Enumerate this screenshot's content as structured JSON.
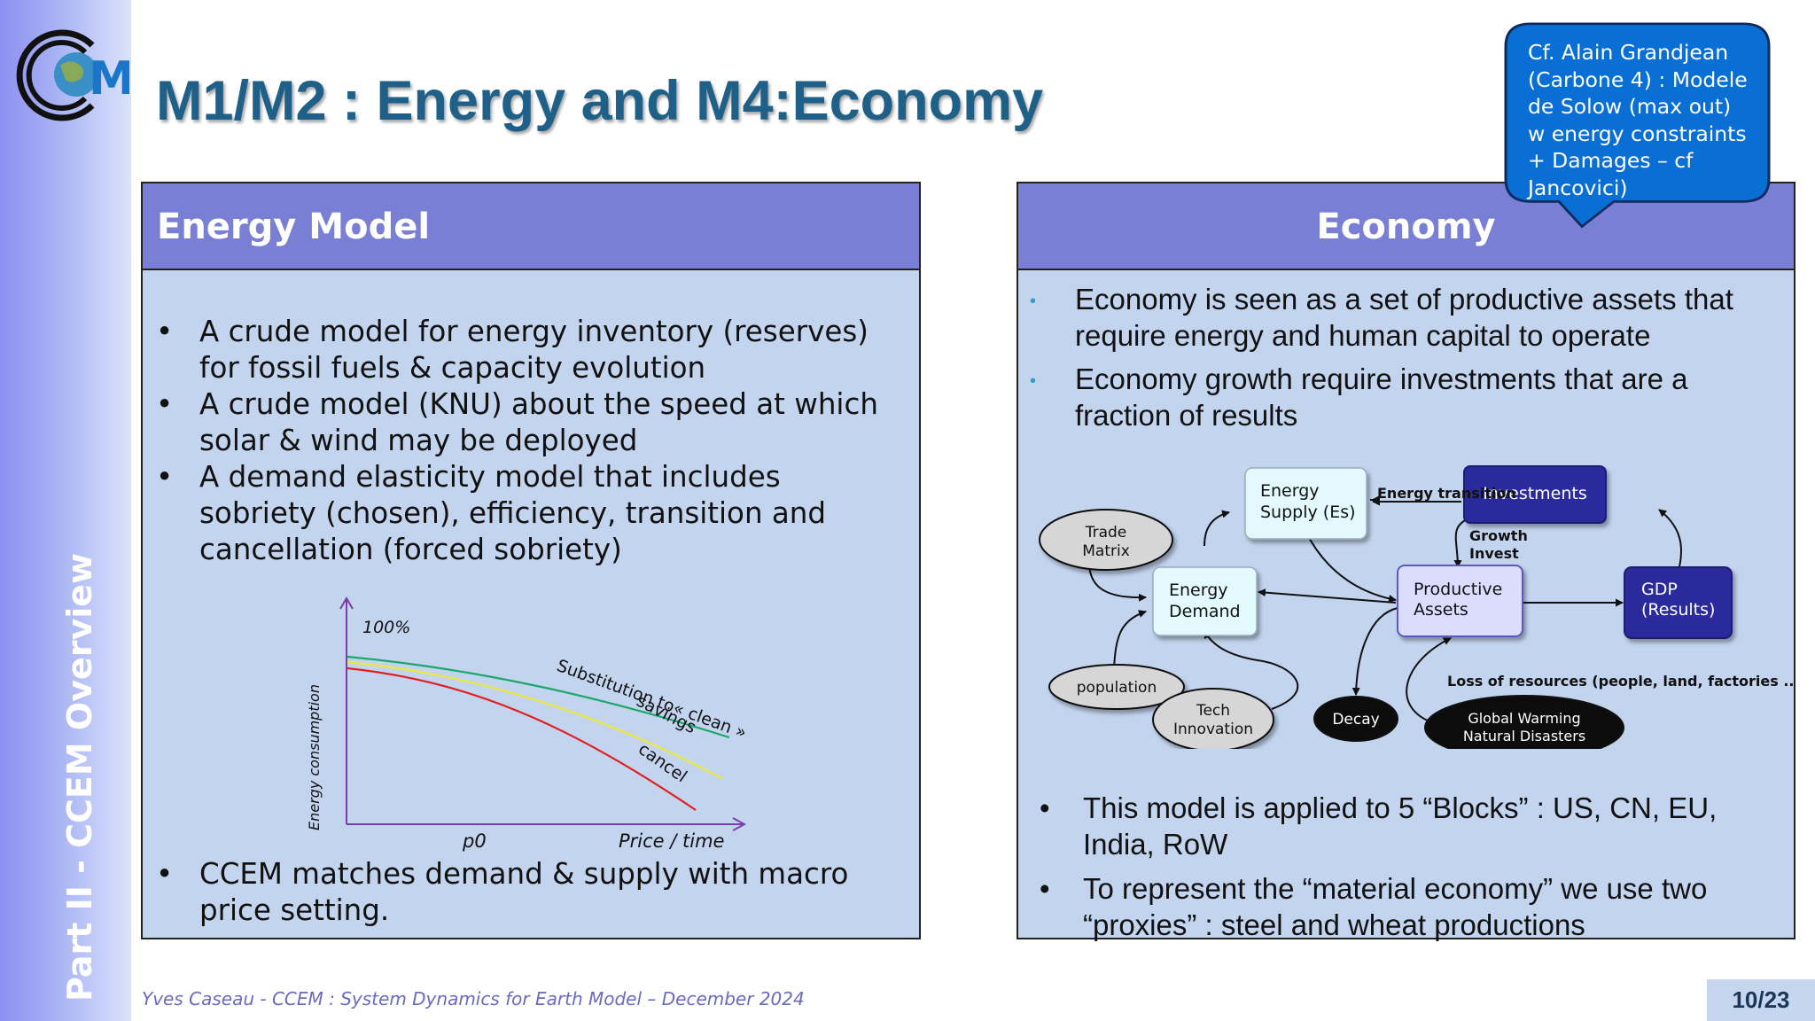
{
  "sidebar": {
    "section_label": "Part II  - CCEM Overview"
  },
  "logo": {
    "letters": "CCEM"
  },
  "slide": {
    "title": "M1/M2 : Energy and M4:Economy"
  },
  "callout": {
    "lines": [
      "Cf. Alain Grandjean",
      "(Carbone 4) : Modele",
      "de Solow (max out)",
      "w energy constraints",
      "+ Damages – cf",
      "Jancovici)"
    ]
  },
  "energy_panel": {
    "header": "Energy Model",
    "bullets": [
      "A crude model for energy inventory (reserves) for fossil fuels & capacity evolution",
      "A crude model (KNU) about the speed at which solar & wind may be deployed",
      "A demand elasticity model that includes sobriety (chosen), efficiency, transition and cancellation (forced sobriety)"
    ],
    "bottom_bullet": "CCEM matches demand & supply with macro price setting."
  },
  "energy_chart": {
    "y_label": "Energy consumption",
    "top_label": "100%",
    "x_tick": "p0",
    "x_label": "Price / time",
    "curve_labels": {
      "substitution": "Substitution to« clean »",
      "savings": "savings",
      "cancel": "cancel"
    },
    "colors": {
      "substitution": "#1aa86a",
      "savings": "#e8e84a",
      "cancel": "#e02020",
      "axis": "#7a3ea8"
    }
  },
  "economy_panel": {
    "header": "Economy",
    "top_bullets": [
      "Economy is seen as a set of productive assets that require energy and human capital to operate",
      "Economy growth require investments that are a fraction of results"
    ],
    "bottom_bullets": [
      "This model is applied to 5 “Blocks” : US, CN, EU, India, RoW",
      "To represent the “material economy” we use two “proxies” : steel and wheat productions"
    ]
  },
  "diagram": {
    "trade_matrix": [
      "Trade",
      "Matrix"
    ],
    "energy_supply": [
      "Energy",
      "Supply (Es)"
    ],
    "investments": "Investments",
    "energy_transition": "Energy transition",
    "growth_invest": [
      "Growth",
      "Invest"
    ],
    "energy_demand": [
      "Energy",
      "Demand"
    ],
    "productive_assets": [
      "Productive",
      "Assets"
    ],
    "gdp": [
      "GDP",
      "(Results)"
    ],
    "population": "population",
    "tech_innovation": [
      "Tech",
      "Innovation"
    ],
    "decay": "Decay",
    "global_warming": [
      "Global Warming",
      "Natural Disasters"
    ],
    "loss_of_resources": "Loss of resources (people, land, factories ...)"
  },
  "footer": {
    "credit": "Yves Caseau  - CCEM : System Dynamics for Earth Model – December 2024",
    "page": "10/23"
  }
}
